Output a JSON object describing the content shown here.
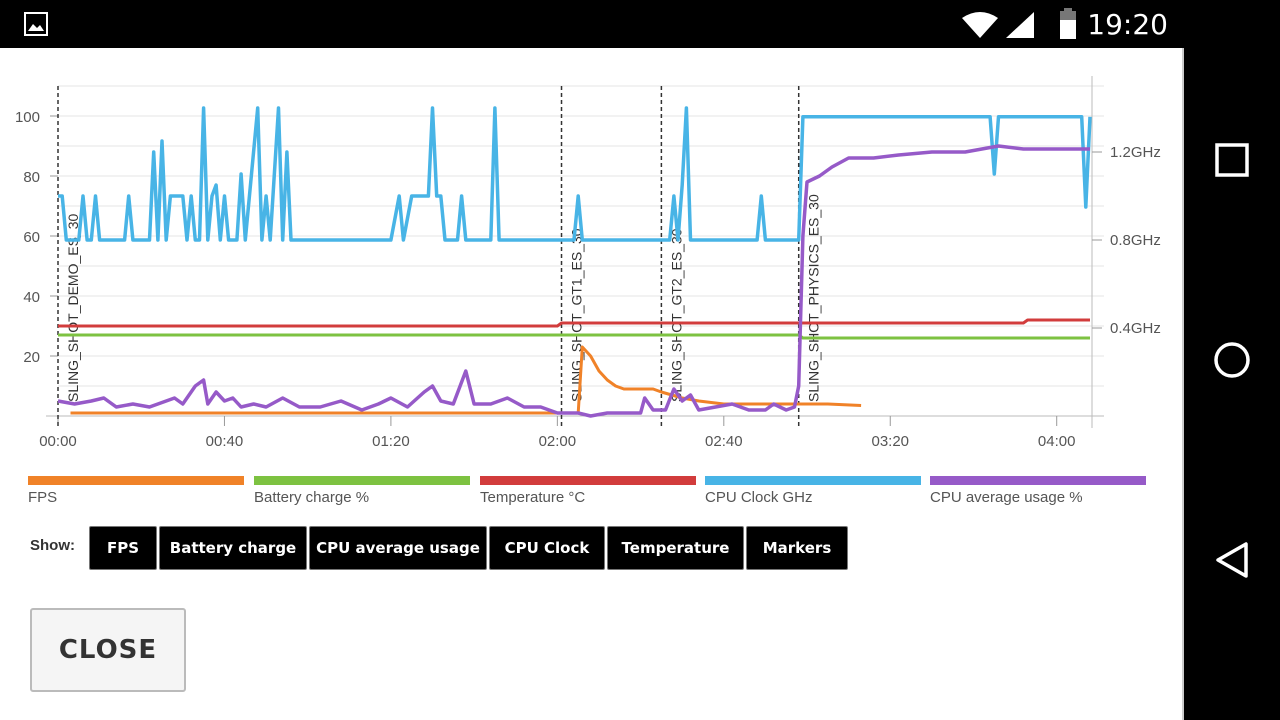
{
  "status_bar": {
    "time": "19:20",
    "icons": [
      "gallery-notification-icon",
      "wifi-icon",
      "cell-signal-icon",
      "battery-icon"
    ]
  },
  "nav_bar": {
    "icons": [
      "recents-square-icon",
      "home-circle-icon",
      "back-triangle-icon"
    ]
  },
  "legend": [
    {
      "label": "FPS",
      "color": "#f08228"
    },
    {
      "label": "Battery charge %",
      "color": "#7dc241"
    },
    {
      "label": "Temperature °C",
      "color": "#d23c3c"
    },
    {
      "label": "CPU Clock GHz",
      "color": "#48b4e6"
    },
    {
      "label": "CPU average usage %",
      "color": "#965ac8"
    }
  ],
  "show": {
    "label": "Show:",
    "buttons": [
      "FPS",
      "Battery charge",
      "CPU average usage",
      "CPU Clock",
      "Temperature",
      "Markers"
    ]
  },
  "close_label": "CLOSE",
  "chart_data": {
    "type": "line",
    "x_unit": "seconds",
    "x_range": [
      0,
      248
    ],
    "y_left_range": [
      0,
      110
    ],
    "y_right_unit": "GHz",
    "y_right_range": [
      0,
      1.5
    ],
    "y_left_ticks": [
      100,
      80,
      60,
      40,
      20
    ],
    "y_right_ticks": [
      {
        "value": 1.2,
        "label": "1.2GHz"
      },
      {
        "value": 0.8,
        "label": "0.8GHz"
      },
      {
        "value": 0.4,
        "label": "0.4GHz"
      }
    ],
    "x_ticks": [
      {
        "value": 0,
        "label": "00:00"
      },
      {
        "value": 40,
        "label": "00:40"
      },
      {
        "value": 80,
        "label": "01:20"
      },
      {
        "value": 120,
        "label": "02:00"
      },
      {
        "value": 160,
        "label": "02:40"
      },
      {
        "value": 200,
        "label": "03:20"
      },
      {
        "value": 240,
        "label": "04:00"
      }
    ],
    "grid": true,
    "markers": [
      {
        "x": 0,
        "label": "SLING_SHOT_DEMO_ES_30"
      },
      {
        "x": 121,
        "label": "SLING_SHOT_GT1_ES_30"
      },
      {
        "x": 145,
        "label": "SLING_SHOT_GT2_ES_30"
      },
      {
        "x": 178,
        "label": "SLING_SHOT_PHYSICS_ES_30"
      }
    ],
    "series": [
      {
        "name": "CPU Clock GHz",
        "axis": "right",
        "color": "#48b4e6",
        "points": [
          [
            0,
            1.0
          ],
          [
            1,
            1.0
          ],
          [
            2,
            0.8
          ],
          [
            5,
            0.8
          ],
          [
            6,
            1.0
          ],
          [
            7,
            0.8
          ],
          [
            8,
            0.8
          ],
          [
            9,
            1.0
          ],
          [
            10,
            0.8
          ],
          [
            16,
            0.8
          ],
          [
            17,
            1.0
          ],
          [
            18,
            0.8
          ],
          [
            22,
            0.8
          ],
          [
            23,
            1.2
          ],
          [
            24,
            0.8
          ],
          [
            25,
            1.25
          ],
          [
            26,
            0.8
          ],
          [
            27,
            1.0
          ],
          [
            30,
            1.0
          ],
          [
            31,
            0.8
          ],
          [
            32,
            1.0
          ],
          [
            33,
            0.8
          ],
          [
            34,
            0.8
          ],
          [
            35,
            1.4
          ],
          [
            36,
            0.8
          ],
          [
            37,
            1.0
          ],
          [
            38,
            1.05
          ],
          [
            39,
            0.8
          ],
          [
            40,
            1.0
          ],
          [
            41,
            0.8
          ],
          [
            43,
            0.8
          ],
          [
            44,
            1.1
          ],
          [
            45,
            0.8
          ],
          [
            48,
            1.4
          ],
          [
            49,
            0.8
          ],
          [
            50,
            1.0
          ],
          [
            51,
            0.8
          ],
          [
            53,
            1.4
          ],
          [
            54,
            0.8
          ],
          [
            55,
            1.2
          ],
          [
            56,
            0.8
          ],
          [
            80,
            0.8
          ],
          [
            82,
            1.0
          ],
          [
            83,
            0.8
          ],
          [
            85,
            1.0
          ],
          [
            89,
            1.0
          ],
          [
            90,
            1.4
          ],
          [
            91,
            1.0
          ],
          [
            92,
            1.0
          ],
          [
            93,
            0.8
          ],
          [
            96,
            0.8
          ],
          [
            97,
            1.0
          ],
          [
            98,
            0.8
          ],
          [
            104,
            0.8
          ],
          [
            105,
            1.4
          ],
          [
            106,
            0.8
          ],
          [
            124,
            0.8
          ],
          [
            125,
            1.0
          ],
          [
            126,
            0.8
          ],
          [
            147,
            0.8
          ],
          [
            148,
            1.0
          ],
          [
            149,
            0.8
          ],
          [
            150,
            1.05
          ],
          [
            151,
            1.4
          ],
          [
            152,
            0.8
          ],
          [
            168,
            0.8
          ],
          [
            169,
            1.0
          ],
          [
            170,
            0.8
          ],
          [
            178,
            0.8
          ],
          [
            179,
            1.36
          ],
          [
            224,
            1.36
          ],
          [
            225,
            1.1
          ],
          [
            226,
            1.36
          ],
          [
            246,
            1.36
          ],
          [
            247,
            0.95
          ],
          [
            248,
            1.36
          ]
        ]
      },
      {
        "name": "CPU average usage %",
        "axis": "left",
        "color": "#965ac8",
        "points": [
          [
            0,
            5
          ],
          [
            4,
            4
          ],
          [
            8,
            5
          ],
          [
            11,
            6
          ],
          [
            14,
            3
          ],
          [
            18,
            4
          ],
          [
            22,
            3
          ],
          [
            26,
            5
          ],
          [
            28,
            6
          ],
          [
            30,
            4
          ],
          [
            33,
            10
          ],
          [
            35,
            12
          ],
          [
            36,
            4
          ],
          [
            38,
            8
          ],
          [
            40,
            5
          ],
          [
            42,
            6
          ],
          [
            44,
            3
          ],
          [
            47,
            4
          ],
          [
            50,
            3
          ],
          [
            54,
            6
          ],
          [
            58,
            3
          ],
          [
            63,
            3
          ],
          [
            68,
            5
          ],
          [
            73,
            2
          ],
          [
            77,
            4
          ],
          [
            80,
            6
          ],
          [
            84,
            3
          ],
          [
            88,
            8
          ],
          [
            90,
            10
          ],
          [
            92,
            5
          ],
          [
            95,
            4
          ],
          [
            98,
            15
          ],
          [
            100,
            4
          ],
          [
            104,
            4
          ],
          [
            108,
            6
          ],
          [
            112,
            3
          ],
          [
            116,
            3
          ],
          [
            120,
            1
          ],
          [
            125,
            1
          ],
          [
            128,
            0
          ],
          [
            132,
            1
          ],
          [
            136,
            1
          ],
          [
            140,
            1
          ],
          [
            141,
            6
          ],
          [
            143,
            2
          ],
          [
            146,
            2
          ],
          [
            148,
            9
          ],
          [
            150,
            5
          ],
          [
            152,
            7
          ],
          [
            154,
            2
          ],
          [
            158,
            3
          ],
          [
            162,
            4
          ],
          [
            166,
            2
          ],
          [
            170,
            2
          ],
          [
            172,
            4
          ],
          [
            175,
            2
          ],
          [
            177,
            3
          ],
          [
            178,
            10
          ],
          [
            179,
            60
          ],
          [
            180,
            78
          ],
          [
            183,
            80
          ],
          [
            186,
            83
          ],
          [
            190,
            86
          ],
          [
            196,
            86
          ],
          [
            202,
            87
          ],
          [
            210,
            88
          ],
          [
            218,
            88
          ],
          [
            226,
            90
          ],
          [
            232,
            89
          ],
          [
            238,
            89
          ],
          [
            245,
            89
          ],
          [
            248,
            89
          ]
        ]
      },
      {
        "name": "FPS",
        "axis": "left",
        "color": "#f08228",
        "points": [
          [
            3,
            1
          ],
          [
            40,
            1
          ],
          [
            80,
            1
          ],
          [
            100,
            1
          ],
          [
            120,
            1
          ],
          [
            125,
            1
          ],
          [
            126,
            23
          ],
          [
            128,
            20
          ],
          [
            130,
            15
          ],
          [
            132,
            12
          ],
          [
            134,
            10
          ],
          [
            136,
            9
          ],
          [
            138,
            9
          ],
          [
            143,
            9
          ],
          [
            145,
            8
          ],
          [
            150,
            6
          ],
          [
            154,
            5
          ],
          [
            160,
            4
          ],
          [
            170,
            4
          ],
          [
            178,
            4
          ],
          [
            185,
            4
          ],
          [
            193,
            3.5
          ]
        ]
      },
      {
        "name": "Battery charge %",
        "axis": "left",
        "color": "#7dc241",
        "points": [
          [
            0,
            27
          ],
          [
            178,
            27
          ],
          [
            179,
            26
          ],
          [
            248,
            26
          ]
        ]
      },
      {
        "name": "Temperature °C",
        "axis": "left",
        "color": "#d23c3c",
        "points": [
          [
            0,
            30
          ],
          [
            120,
            30
          ],
          [
            121,
            31
          ],
          [
            232,
            31
          ],
          [
            233,
            32
          ],
          [
            248,
            32
          ]
        ]
      }
    ]
  }
}
